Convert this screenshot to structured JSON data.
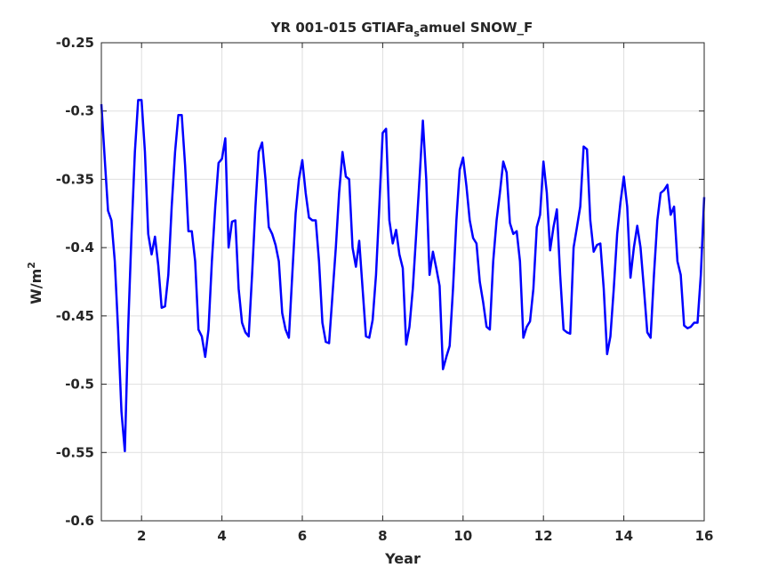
{
  "chart_data": {
    "type": "line",
    "title_main": "YR 001-015 GTIAFa",
    "title_sub": "s",
    "title_rest": "amuel SNOW_F",
    "xlabel": "Year",
    "ylabel_main": "W/m",
    "ylabel_sup": "2",
    "xlim": [
      1,
      16
    ],
    "ylim": [
      -0.6,
      -0.25
    ],
    "xticks": [
      2,
      4,
      6,
      8,
      10,
      12,
      14,
      16
    ],
    "xtick_labels": [
      "2",
      "4",
      "6",
      "8",
      "10",
      "12",
      "14",
      "16"
    ],
    "yticks": [
      -0.6,
      -0.55,
      -0.5,
      -0.45,
      -0.4,
      -0.35,
      -0.3,
      -0.25
    ],
    "ytick_labels": [
      "-0.6",
      "-0.55",
      "-0.5",
      "-0.45",
      "-0.4",
      "-0.35",
      "-0.3",
      "-0.25"
    ],
    "grid": true,
    "line_color": "#0000ff",
    "x_start": 1,
    "x_step": 0.08333,
    "values": [
      -0.295,
      -0.335,
      -0.373,
      -0.38,
      -0.41,
      -0.46,
      -0.52,
      -0.549,
      -0.46,
      -0.39,
      -0.33,
      -0.292,
      -0.292,
      -0.33,
      -0.39,
      -0.405,
      -0.392,
      -0.413,
      -0.444,
      -0.443,
      -0.42,
      -0.37,
      -0.33,
      -0.303,
      -0.303,
      -0.34,
      -0.388,
      -0.388,
      -0.41,
      -0.46,
      -0.465,
      -0.48,
      -0.46,
      -0.41,
      -0.37,
      -0.338,
      -0.335,
      -0.32,
      -0.4,
      -0.381,
      -0.38,
      -0.43,
      -0.455,
      -0.462,
      -0.465,
      -0.42,
      -0.37,
      -0.33,
      -0.323,
      -0.35,
      -0.385,
      -0.39,
      -0.398,
      -0.41,
      -0.448,
      -0.46,
      -0.466,
      -0.42,
      -0.375,
      -0.35,
      -0.336,
      -0.36,
      -0.378,
      -0.38,
      -0.38,
      -0.41,
      -0.455,
      -0.469,
      -0.47,
      -0.435,
      -0.4,
      -0.36,
      -0.33,
      -0.348,
      -0.35,
      -0.4,
      -0.414,
      -0.395,
      -0.43,
      -0.465,
      -0.466,
      -0.453,
      -0.42,
      -0.37,
      -0.316,
      -0.313,
      -0.38,
      -0.397,
      -0.387,
      -0.405,
      -0.415,
      -0.471,
      -0.458,
      -0.43,
      -0.39,
      -0.35,
      -0.307,
      -0.35,
      -0.42,
      -0.403,
      -0.415,
      -0.428,
      -0.489,
      -0.48,
      -0.472,
      -0.43,
      -0.38,
      -0.343,
      -0.334,
      -0.355,
      -0.38,
      -0.393,
      -0.397,
      -0.425,
      -0.44,
      -0.458,
      -0.46,
      -0.41,
      -0.38,
      -0.36,
      -0.337,
      -0.345,
      -0.382,
      -0.39,
      -0.388,
      -0.41,
      -0.466,
      -0.458,
      -0.454,
      -0.43,
      -0.385,
      -0.376,
      -0.337,
      -0.36,
      -0.402,
      -0.385,
      -0.372,
      -0.42,
      -0.46,
      -0.462,
      -0.463,
      -0.4,
      -0.385,
      -0.37,
      -0.326,
      -0.328,
      -0.38,
      -0.403,
      -0.398,
      -0.397,
      -0.43,
      -0.478,
      -0.465,
      -0.43,
      -0.39,
      -0.367,
      -0.348,
      -0.37,
      -0.422,
      -0.4,
      -0.384,
      -0.4,
      -0.43,
      -0.462,
      -0.466,
      -0.42,
      -0.38,
      -0.36,
      -0.358,
      -0.354,
      -0.376,
      -0.37,
      -0.41,
      -0.42,
      -0.457,
      -0.459,
      -0.458,
      -0.455,
      -0.455,
      -0.42,
      -0.363
    ]
  }
}
